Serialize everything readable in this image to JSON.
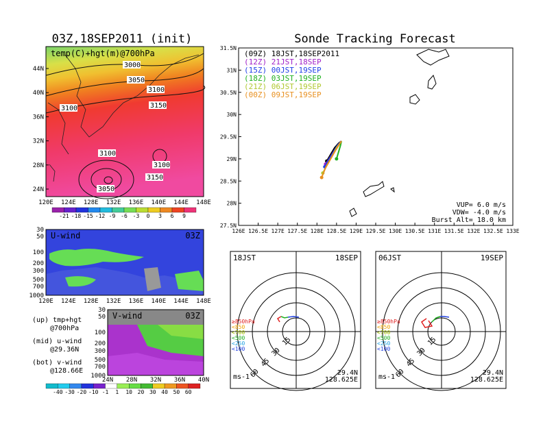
{
  "top_left": {
    "title": "03Z,18SEP2011 (init)",
    "label": "temp(C)+hgt(m)@700hPa",
    "contours": [
      "3000",
      "3050",
      "3100",
      "3150",
      "3100",
      "3100",
      "3100",
      "3150",
      "3050"
    ],
    "lat_ticks": [
      "44N",
      "40N",
      "36N",
      "32N",
      "28N",
      "24N"
    ],
    "lon_ticks": [
      "120E",
      "124E",
      "128E",
      "132E",
      "136E",
      "140E",
      "144E",
      "148E"
    ],
    "colorbar": [
      "-21",
      "-18",
      "-15",
      "-12",
      "-9",
      "-6",
      "-3",
      "0",
      "3",
      "6",
      "9"
    ]
  },
  "u_panel": {
    "label": "U-wind",
    "time": "03Z",
    "levels": [
      "30",
      "50",
      "100",
      "200",
      "300",
      "500",
      "700",
      "1000"
    ],
    "lon_ticks": [
      "120E",
      "124E",
      "128E",
      "132E",
      "136E",
      "140E",
      "144E",
      "148E"
    ]
  },
  "v_panel": {
    "label": "V-wind",
    "time": "03Z",
    "levels": [
      "30",
      "50",
      "100",
      "200",
      "300",
      "500",
      "700",
      "1000"
    ],
    "lat_ticks": [
      "24N",
      "28N",
      "32N",
      "36N",
      "40N"
    ],
    "colorbar": [
      "-40",
      "-30",
      "-20",
      "-10",
      "-1",
      "1",
      "10",
      "20",
      "30",
      "40",
      "50",
      "60"
    ]
  },
  "legend_notes": [
    "(up) tmp+hgt",
    "@700hPa",
    "(mid) u-wind",
    "@29.36N",
    "(bot) v-wind",
    "@128.66E"
  ],
  "main": {
    "title": "Sonde Tracking Forecast",
    "legend": [
      {
        "text": "(09Z) 18JST,18SEP2011",
        "color": "#000000"
      },
      {
        "text": "(12Z) 21JST,18SEP",
        "color": "#a020c8"
      },
      {
        "text": "(15Z) 00JST,19SEP",
        "color": "#2040e8"
      },
      {
        "text": "(18Z) 03JST,19SEP",
        "color": "#20b020"
      },
      {
        "text": "(21Z) 06JST,19SEP",
        "color": "#b0c830"
      },
      {
        "text": "(00Z) 09JST,19SEP",
        "color": "#e89020"
      }
    ],
    "lat_ticks": [
      "31.5N",
      "31N",
      "30.5N",
      "30N",
      "29.5N",
      "29N",
      "28.5N",
      "28N",
      "27.5N"
    ],
    "lon_ticks": [
      "126E",
      "126.5E",
      "127E",
      "127.5E",
      "128E",
      "128.5E",
      "129E",
      "129.5E",
      "130E",
      "130.5E",
      "131E",
      "131.5E",
      "132E",
      "132.5E",
      "133E"
    ],
    "params": [
      "VUP=  6.0  m/s",
      "VDW= -4.0  m/s",
      "Burst Alt=  18.0  km"
    ]
  },
  "hodo_left": {
    "time": "18JST",
    "date": "18SEP",
    "lat": "29.4N",
    "lon": "128.625E",
    "unit": "ms-1",
    "rings": [
      "15",
      "30",
      "45",
      "60"
    ]
  },
  "hodo_right": {
    "time": "06JST",
    "date": "19SEP",
    "lat": "29.4N",
    "lon": "128.625E",
    "unit": "ms-1",
    "rings": [
      "15",
      "30",
      "45",
      "60"
    ]
  },
  "hodo_levels": [
    {
      "text": "≥850hPa",
      "color": "#e02020"
    },
    {
      "text": "<850",
      "color": "#f0a000"
    },
    {
      "text": "<700",
      "color": "#a0c000"
    },
    {
      "text": "<500",
      "color": "#20b020"
    },
    {
      "text": "<250",
      "color": "#20a0e0"
    },
    {
      "text": "<100",
      "color": "#2040e0"
    }
  ],
  "chart_data": {
    "type": "line",
    "title": "Sonde Tracking Forecast",
    "xlim": [
      126,
      133
    ],
    "ylim": [
      27.5,
      31.5
    ],
    "series": [
      {
        "name": "(09Z) 18JST,18SEP2011",
        "color": "#000000",
        "x": [
          128.625,
          128.55,
          128.45,
          128.35,
          128.25
        ],
        "y": [
          29.4,
          29.35,
          29.25,
          29.1,
          28.95
        ]
      },
      {
        "name": "(12Z) 21JST,18SEP",
        "color": "#a020c8",
        "x": [
          128.625,
          128.55,
          128.45,
          128.33,
          128.22
        ],
        "y": [
          29.4,
          29.33,
          29.2,
          29.03,
          28.88
        ]
      },
      {
        "name": "(15Z) 00JST,19SEP",
        "color": "#2040e8",
        "x": [
          128.625,
          128.52,
          128.42,
          128.3,
          128.2
        ],
        "y": [
          29.4,
          29.3,
          29.15,
          28.98,
          28.82
        ]
      },
      {
        "name": "(18Z) 03JST,19SEP",
        "color": "#20b020",
        "x": [
          128.625,
          128.6,
          128.55,
          128.5
        ],
        "y": [
          29.4,
          29.3,
          29.15,
          29.0
        ]
      },
      {
        "name": "(21Z) 06JST,19SEP",
        "color": "#b0c830",
        "x": [
          128.625,
          128.5,
          128.38,
          128.25,
          128.15
        ],
        "y": [
          29.4,
          29.25,
          29.05,
          28.85,
          28.68
        ]
      },
      {
        "name": "(00Z) 09JST,19SEP",
        "color": "#e89020",
        "x": [
          128.625,
          128.48,
          128.35,
          128.22,
          128.12
        ],
        "y": [
          29.4,
          29.2,
          29.0,
          28.8,
          28.58
        ]
      }
    ]
  }
}
